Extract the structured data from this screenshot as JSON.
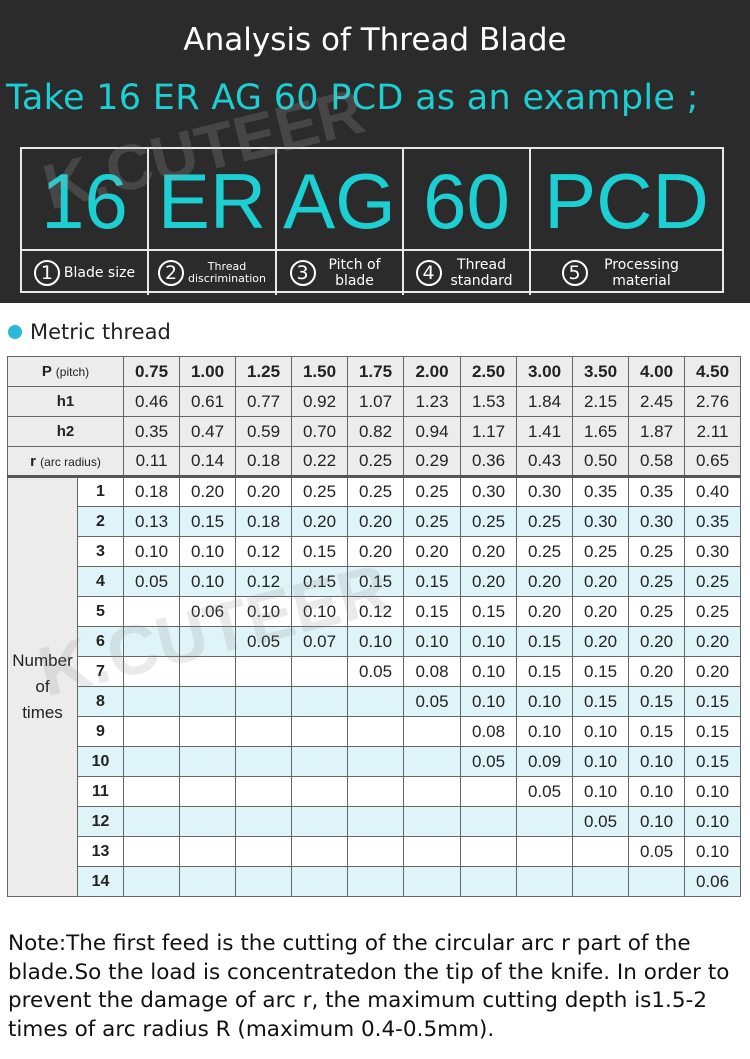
{
  "header": {
    "title": "Analysis of Thread Blade",
    "subtitle": "Take 16 ER AG 60  PCD as an example ;",
    "codes": [
      "16",
      "ER",
      "AG",
      "60",
      "PCD"
    ],
    "descriptions": [
      {
        "num": "1",
        "text": "Blade size"
      },
      {
        "num": "2",
        "text": "Thread discrimination"
      },
      {
        "num": "3",
        "text": "Pitch of blade"
      },
      {
        "num": "4",
        "text": "Thread standard"
      },
      {
        "num": "5",
        "text": "Processing material"
      }
    ]
  },
  "watermark": "K.CUTEER",
  "section": {
    "label": "Metric thread",
    "dot_color": "#2bb8d9"
  },
  "table": {
    "param_rows": [
      {
        "name": "P",
        "unit": "(pitch)",
        "values": [
          "0.75",
          "1.00",
          "1.25",
          "1.50",
          "1.75",
          "2.00",
          "2.50",
          "3.00",
          "3.50",
          "4.00",
          "4.50"
        ]
      },
      {
        "name": "h1",
        "unit": "",
        "values": [
          "0.46",
          "0.61",
          "0.77",
          "0.92",
          "1.07",
          "1.23",
          "1.53",
          "1.84",
          "2.15",
          "2.45",
          "2.76"
        ]
      },
      {
        "name": "h2",
        "unit": "",
        "values": [
          "0.35",
          "0.47",
          "0.59",
          "0.70",
          "0.82",
          "0.94",
          "1.17",
          "1.41",
          "1.65",
          "1.87",
          "2.11"
        ]
      },
      {
        "name": "r",
        "unit": "(arc radius)",
        "values": [
          "0.11",
          "0.14",
          "0.18",
          "0.22",
          "0.25",
          "0.29",
          "0.36",
          "0.43",
          "0.50",
          "0.58",
          "0.65"
        ]
      }
    ],
    "times_label": [
      "Number",
      "of",
      "times"
    ],
    "times_rows": [
      {
        "n": "1",
        "values": [
          "0.18",
          "0.20",
          "0.20",
          "0.25",
          "0.25",
          "0.25",
          "0.30",
          "0.30",
          "0.35",
          "0.35",
          "0.40"
        ]
      },
      {
        "n": "2",
        "values": [
          "0.13",
          "0.15",
          "0.18",
          "0.20",
          "0.20",
          "0.25",
          "0.25",
          "0.25",
          "0.30",
          "0.30",
          "0.35"
        ]
      },
      {
        "n": "3",
        "values": [
          "0.10",
          "0.10",
          "0.12",
          "0.15",
          "0.20",
          "0.20",
          "0.20",
          "0.25",
          "0.25",
          "0.25",
          "0.30"
        ]
      },
      {
        "n": "4",
        "values": [
          "0.05",
          "0.10",
          "0.12",
          "0.15",
          "0.15",
          "0.15",
          "0.20",
          "0.20",
          "0.20",
          "0.25",
          "0.25"
        ]
      },
      {
        "n": "5",
        "values": [
          "",
          "0.06",
          "0.10",
          "0.10",
          "0.12",
          "0.15",
          "0.15",
          "0.20",
          "0.20",
          "0.25",
          "0.25"
        ]
      },
      {
        "n": "6",
        "values": [
          "",
          "",
          "0.05",
          "0.07",
          "0.10",
          "0.10",
          "0.10",
          "0.15",
          "0.20",
          "0.20",
          "0.20"
        ]
      },
      {
        "n": "7",
        "values": [
          "",
          "",
          "",
          "",
          "0.05",
          "0.08",
          "0.10",
          "0.15",
          "0.15",
          "0.20",
          "0.20"
        ]
      },
      {
        "n": "8",
        "values": [
          "",
          "",
          "",
          "",
          "",
          "0.05",
          "0.10",
          "0.10",
          "0.15",
          "0.15",
          "0.15"
        ]
      },
      {
        "n": "9",
        "values": [
          "",
          "",
          "",
          "",
          "",
          "",
          "0.08",
          "0.10",
          "0.10",
          "0.15",
          "0.15"
        ]
      },
      {
        "n": "10",
        "values": [
          "",
          "",
          "",
          "",
          "",
          "",
          "0.05",
          "0.09",
          "0.10",
          "0.10",
          "0.15"
        ]
      },
      {
        "n": "11",
        "values": [
          "",
          "",
          "",
          "",
          "",
          "",
          "",
          "0.05",
          "0.10",
          "0.10",
          "0.10"
        ]
      },
      {
        "n": "12",
        "values": [
          "",
          "",
          "",
          "",
          "",
          "",
          "",
          "",
          "0.05",
          "0.10",
          "0.10"
        ]
      },
      {
        "n": "13",
        "values": [
          "",
          "",
          "",
          "",
          "",
          "",
          "",
          "",
          "",
          "0.05",
          "0.10"
        ]
      },
      {
        "n": "14",
        "values": [
          "",
          "",
          "",
          "",
          "",
          "",
          "",
          "",
          "",
          "",
          "0.06"
        ]
      }
    ]
  },
  "note": "Note:The first feed is the cutting of the circular arc r part of the blade.So the load is concentratedon the tip of the knife. In order to prevent the damage of arc r, the maximum cutting depth is1.5-2 times of arc radius R (maximum 0.4-0.5mm)."
}
